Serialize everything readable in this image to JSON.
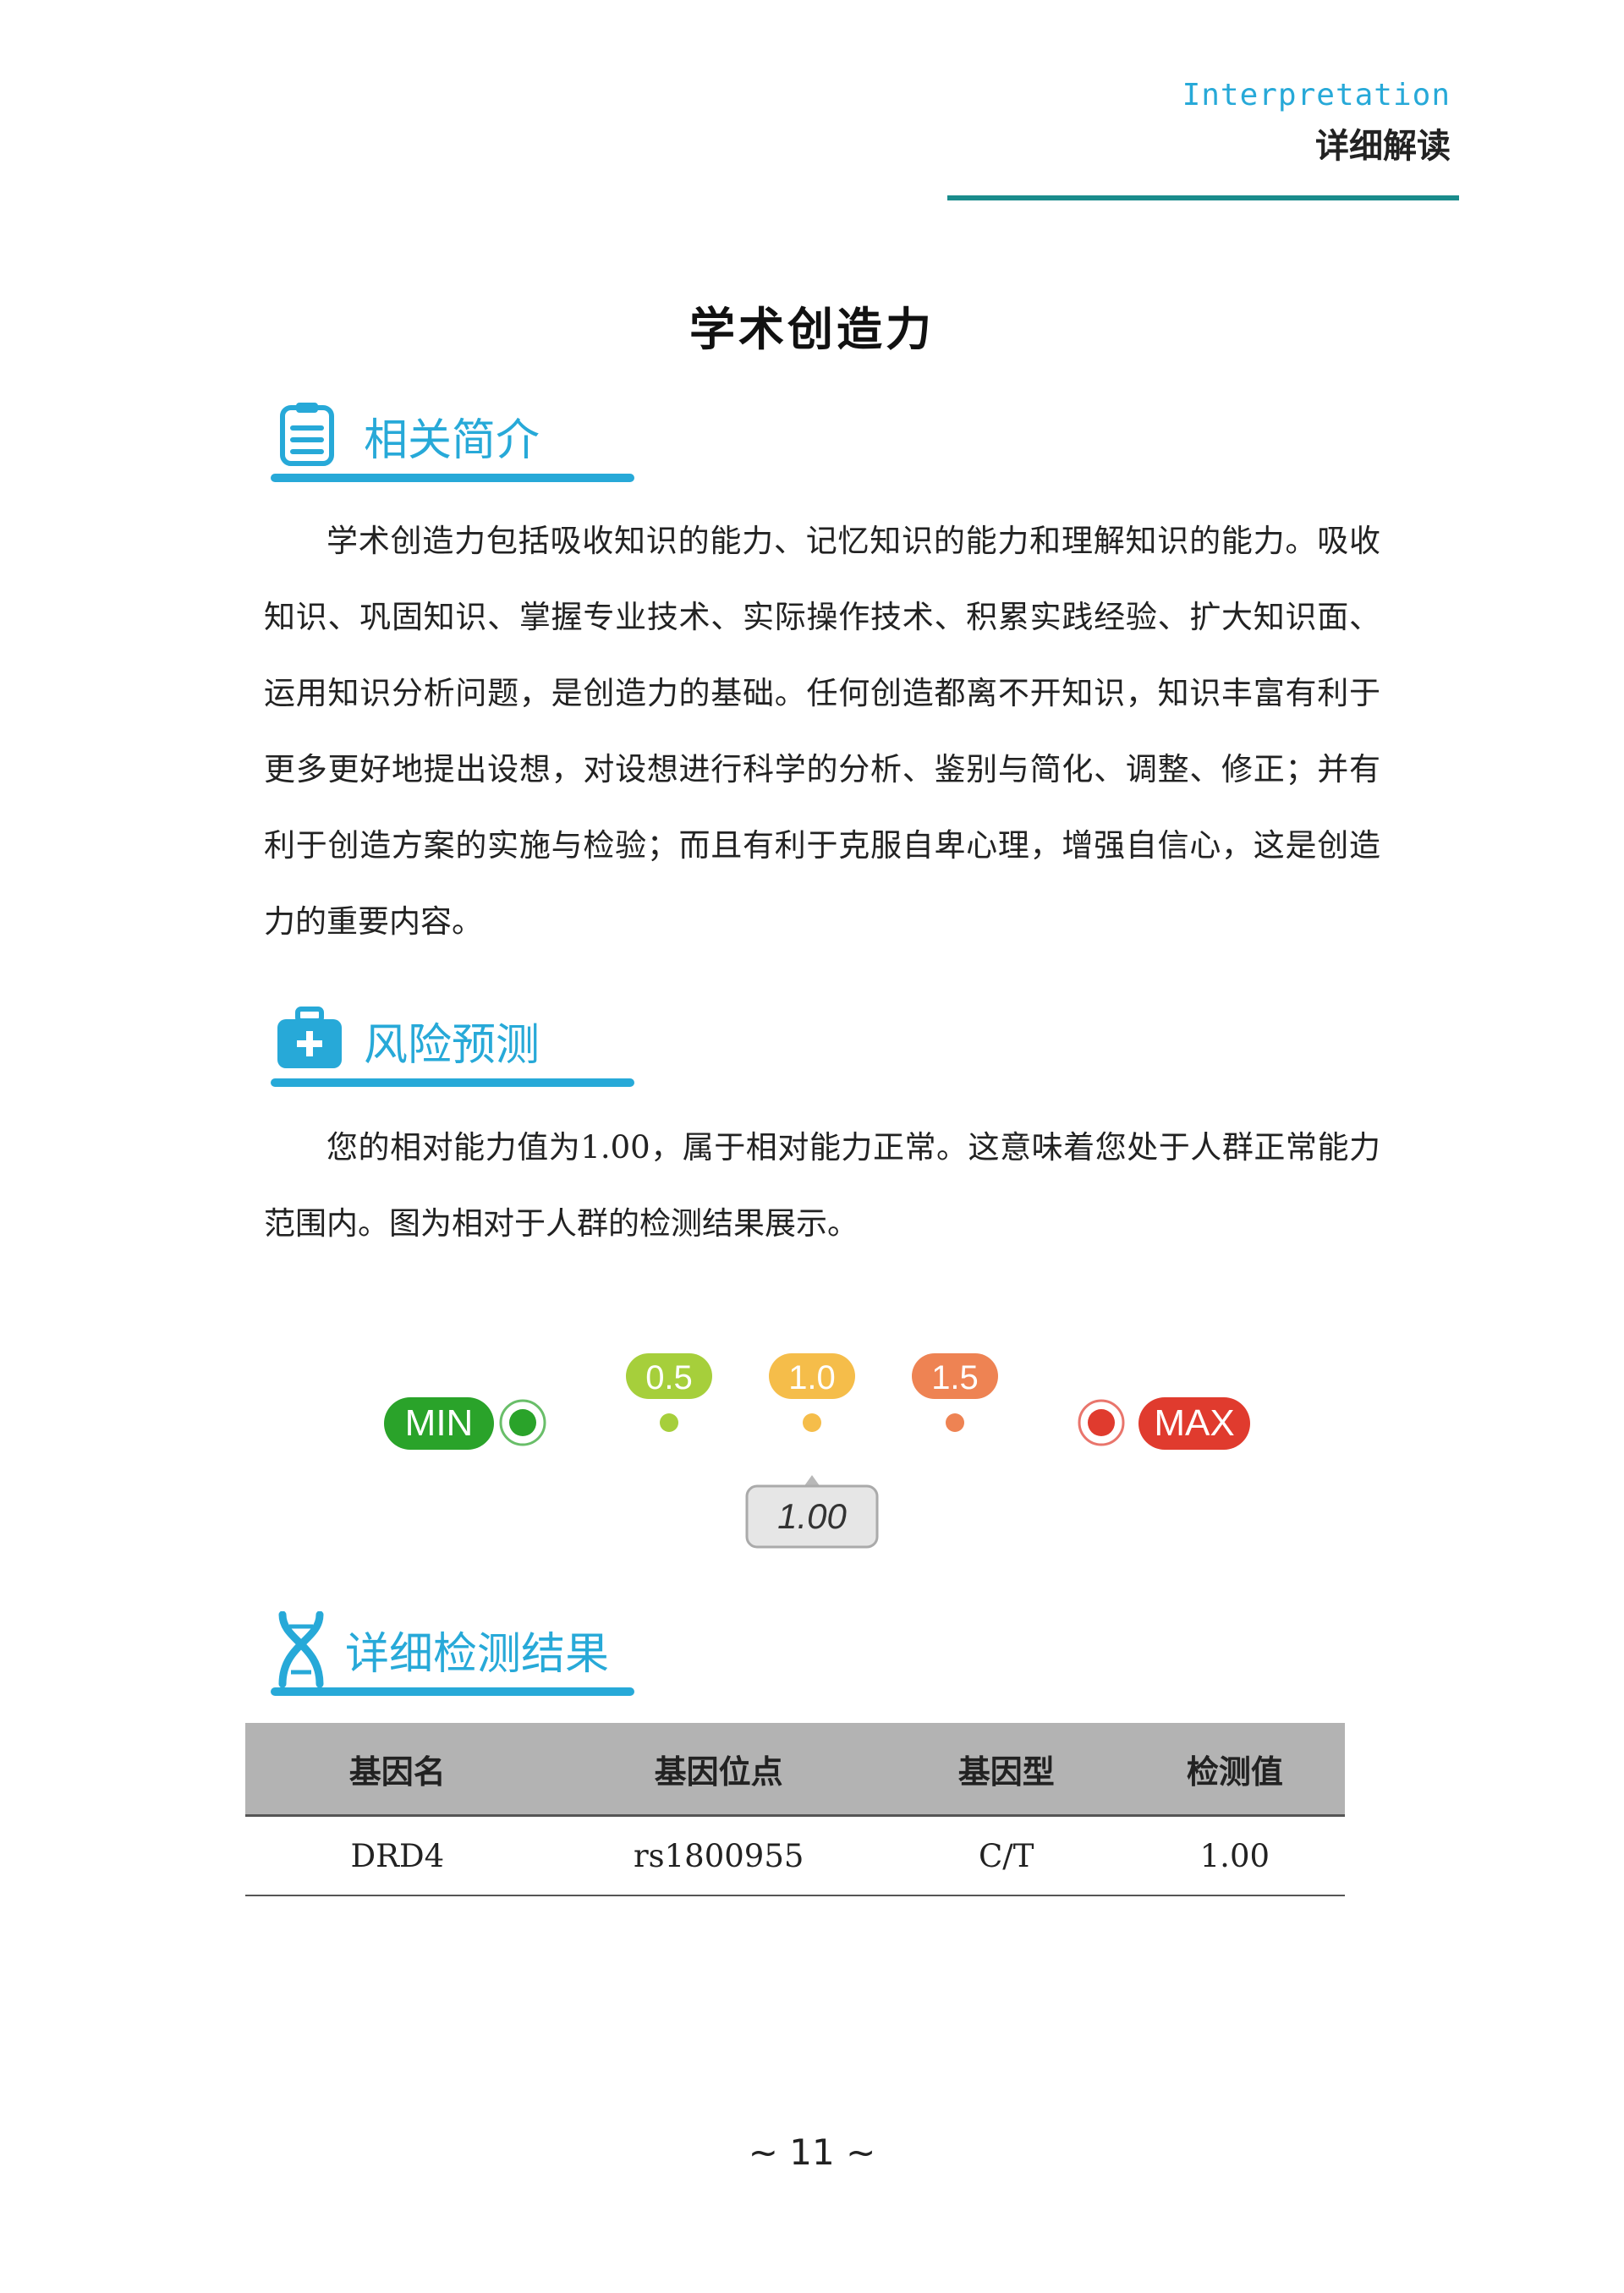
{
  "header": {
    "en": "Interpretation",
    "cn": "详细解读"
  },
  "title": "学术创造力",
  "sections": {
    "intro": {
      "heading": "相关简介",
      "icon": "document-icon"
    },
    "risk": {
      "heading": "风险预测",
      "icon": "medical-kit-icon"
    },
    "detail": {
      "heading": "详细检测结果",
      "icon": "dna-icon"
    }
  },
  "intro_text": "学术创造力包括吸收知识的能力、记忆知识的能力和理解知识的能力。吸收知识、巩固知识、掌握专业技术、实际操作技术、积累实践经验、扩大知识面、运用知识分析问题，是创造力的基础。任何创造都离不开知识，知识丰富有利于更多更好地提出设想，对设想进行科学的分析、鉴别与简化、调整、修正；并有利于创造方案的实施与检验；而且有利于克服自卑心理，增强自信心，这是创造力的重要内容。",
  "risk_text": "您的相对能力值为1.00，属于相对能力正常。这意味着您处于人群正常能力范围内。图为相对于人群的检测结果展示。",
  "gauge": {
    "min_label": "MIN",
    "max_label": "MAX",
    "ticks": [
      {
        "label": "0.5",
        "value": 0.5,
        "color": "#a6cf3b"
      },
      {
        "label": "1.0",
        "value": 1.0,
        "color": "#f5bd4a"
      },
      {
        "label": "1.5",
        "value": 1.5,
        "color": "#ee8353"
      }
    ],
    "range": [
      0,
      2
    ],
    "value": 1.0,
    "value_label": "1.00",
    "min_color": "#2aa32a",
    "max_color": "#e03b2e"
  },
  "table": {
    "headers": [
      "基因名",
      "基因位点",
      "基因型",
      "检测值"
    ],
    "rows": [
      [
        "DRD4",
        "rs1800955",
        "C/T",
        "1.00"
      ]
    ]
  },
  "footer": "~ 11 ~"
}
